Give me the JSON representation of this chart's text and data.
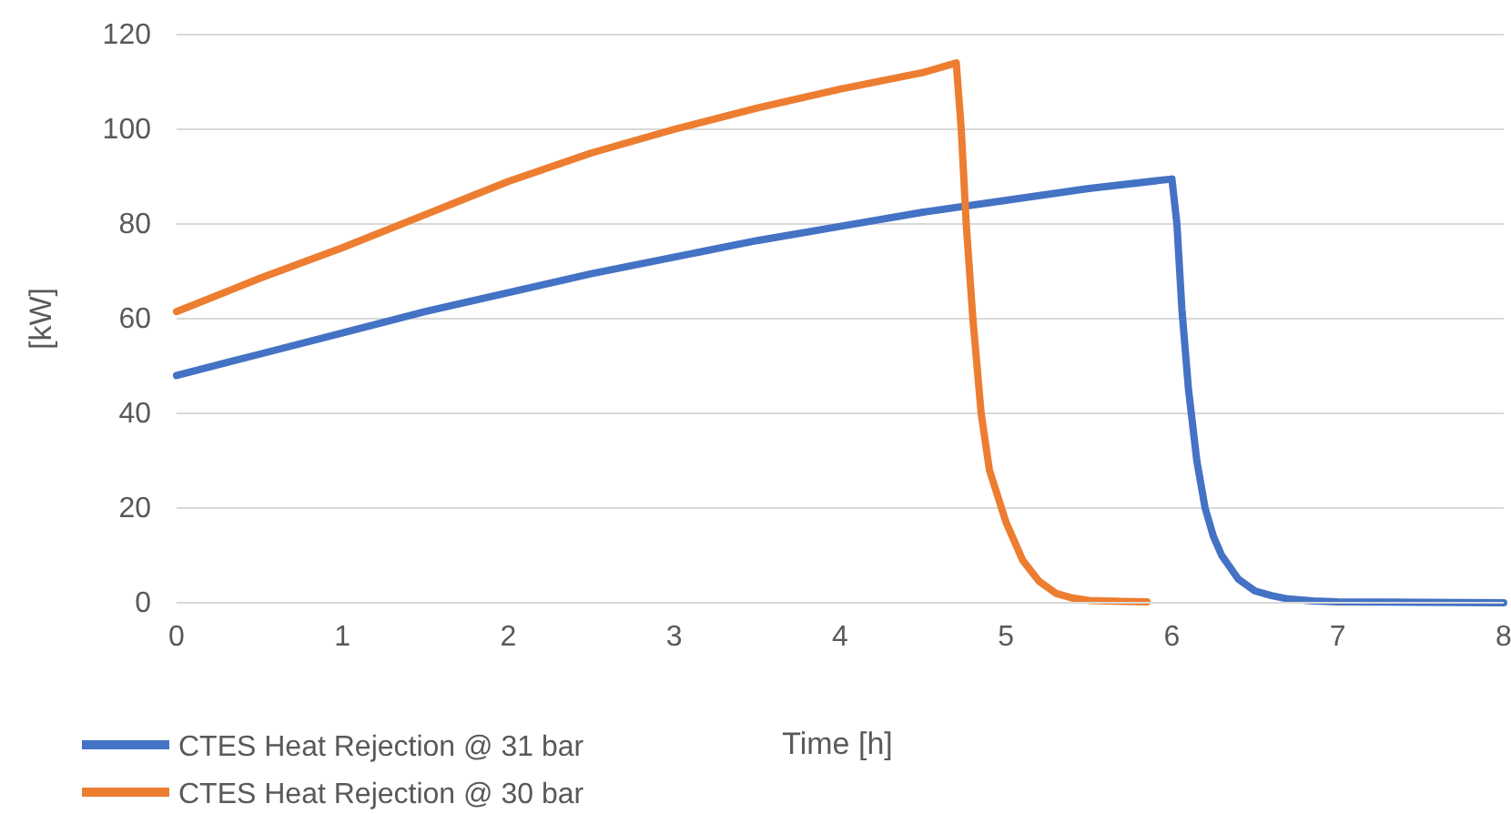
{
  "chart_data": {
    "type": "line",
    "xlabel": "Time [h]",
    "ylabel": "[kW]",
    "xlim": [
      0,
      8
    ],
    "ylim": [
      0,
      120
    ],
    "xticks": [
      0,
      1,
      2,
      3,
      4,
      5,
      6,
      7,
      8
    ],
    "yticks": [
      0,
      20,
      40,
      60,
      80,
      100,
      120
    ],
    "grid": "y",
    "legend": "bottom left",
    "marker": "none",
    "line_style": "solid",
    "series": [
      {
        "name": "CTES Heat Rejection @ 31 bar",
        "color": "#4472c4",
        "x": [
          0,
          0.5,
          1,
          1.5,
          2,
          2.5,
          3,
          3.5,
          4,
          4.5,
          5,
          5.5,
          6,
          6.03,
          6.06,
          6.1,
          6.15,
          6.2,
          6.25,
          6.3,
          6.4,
          6.5,
          6.6,
          6.7,
          6.85,
          7,
          7.5,
          8
        ],
        "values": [
          48,
          52.5,
          57,
          61.5,
          65.5,
          69.5,
          73,
          76.5,
          79.5,
          82.5,
          85,
          87.5,
          89.5,
          80,
          62,
          45,
          30,
          20,
          14,
          10,
          5,
          2.5,
          1.5,
          0.8,
          0.4,
          0.2,
          0.1,
          0
        ]
      },
      {
        "name": "CTES Heat Rejection @ 30 bar",
        "color": "#ed7d31",
        "x": [
          0,
          0.5,
          1,
          1.5,
          2,
          2.5,
          3,
          3.5,
          4,
          4.5,
          4.7,
          4.73,
          4.76,
          4.8,
          4.85,
          4.9,
          5,
          5.1,
          5.2,
          5.3,
          5.4,
          5.5,
          5.7,
          5.85
        ],
        "values": [
          61.5,
          68.5,
          75,
          82,
          89,
          95,
          100,
          104.5,
          108.5,
          112,
          114,
          100,
          80,
          60,
          40,
          28,
          17,
          9,
          4.5,
          2,
          1,
          0.5,
          0.3,
          0.2
        ]
      }
    ]
  }
}
